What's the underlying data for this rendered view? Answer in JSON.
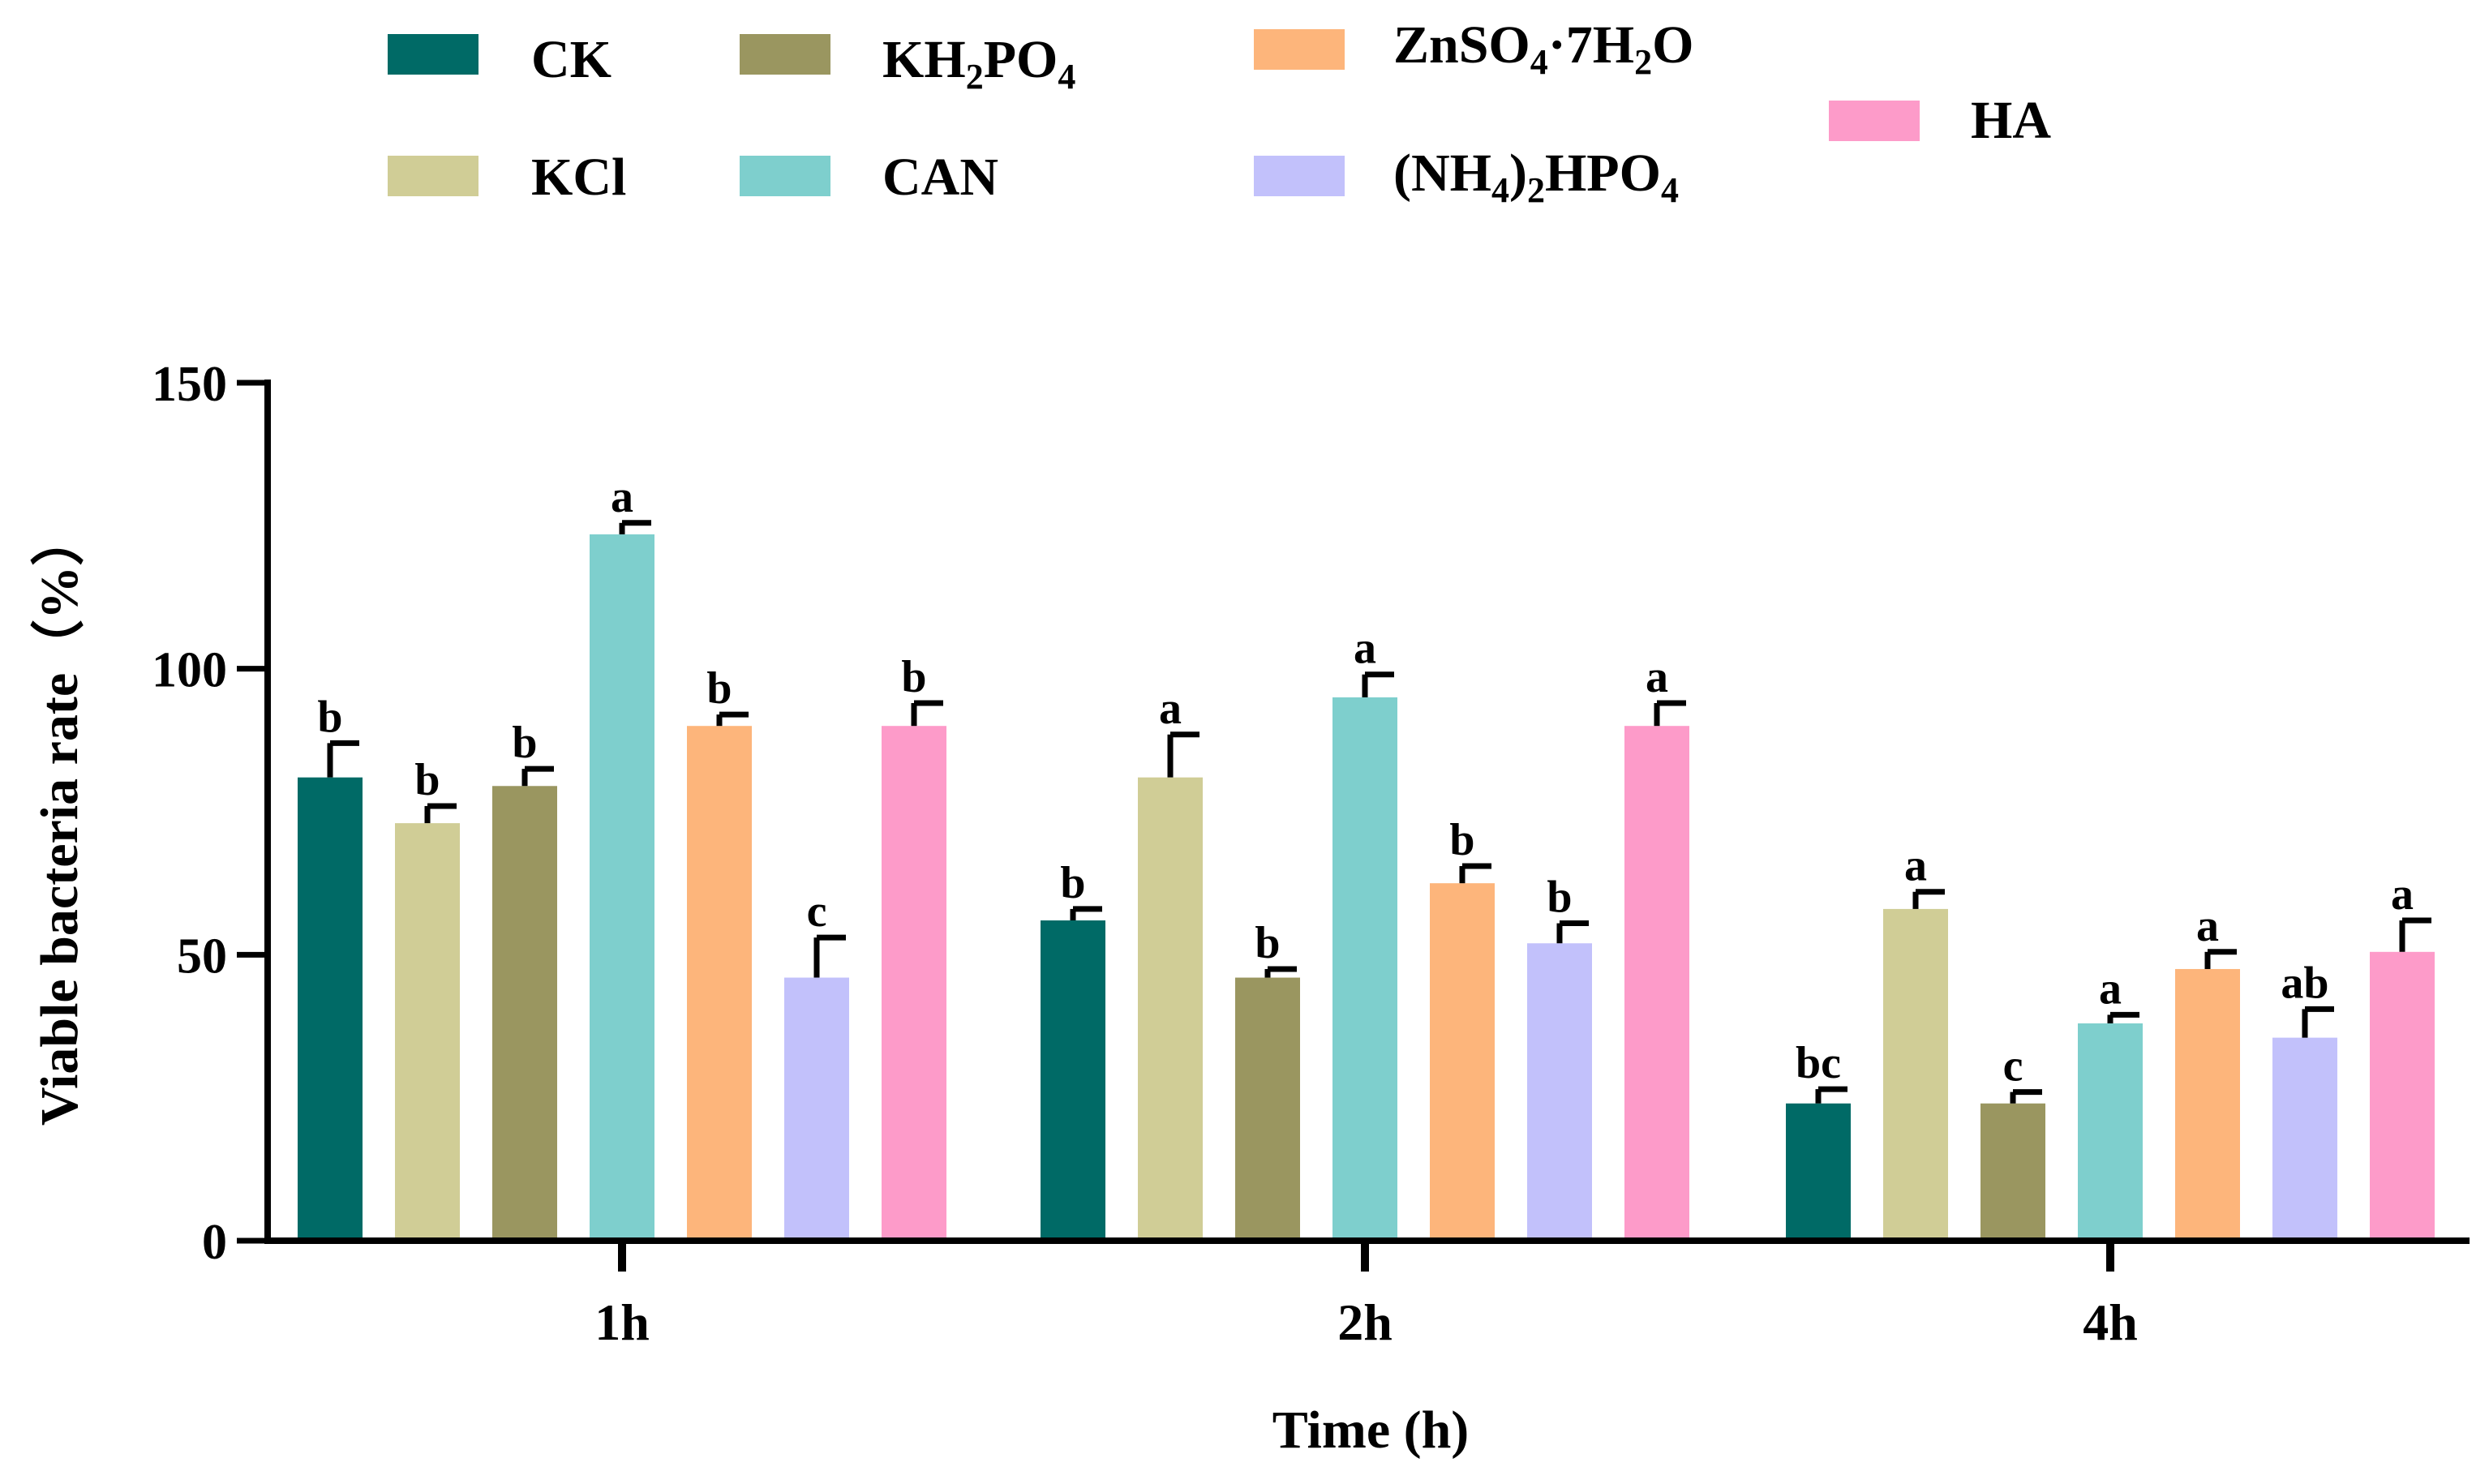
{
  "chart_data": {
    "type": "bar",
    "xlabel": "Time (h)",
    "ylabel": "Viable bacteria rate（%）",
    "ylim": [
      0,
      150
    ],
    "yticks": [
      0,
      50,
      100,
      150
    ],
    "categories": [
      "1h",
      "2h",
      "4h"
    ],
    "legend_position": "top",
    "grid": false,
    "series": [
      {
        "name": "CK",
        "color": "#006a66",
        "values": [
          81,
          56,
          24
        ],
        "errors": [
          6,
          2,
          2.5
        ],
        "letters": [
          "b",
          "b",
          "bc"
        ]
      },
      {
        "name": "KCl",
        "color": "#d0cd96",
        "values": [
          73,
          81,
          58
        ],
        "errors": [
          3,
          7.5,
          3
        ],
        "letters": [
          "b",
          "a",
          "a"
        ]
      },
      {
        "name": "KH₂PO₄",
        "color": "#9a9660",
        "values": [
          79.5,
          46,
          24
        ],
        "errors": [
          3,
          1.5,
          2
        ],
        "letters": [
          "b",
          "b",
          "c"
        ]
      },
      {
        "name": "CAN",
        "color": "#7ecfcd",
        "values": [
          123.5,
          95,
          38
        ],
        "errors": [
          2,
          4,
          1.5
        ],
        "letters": [
          "a",
          "a",
          "a"
        ]
      },
      {
        "name": "ZnSO₄·7H₂O",
        "color": "#fdb57b",
        "values": [
          90,
          62.5,
          47.5
        ],
        "errors": [
          2,
          3,
          3
        ],
        "letters": [
          "b",
          "b",
          "a"
        ]
      },
      {
        "name": "(NH₄)₂HPO₄",
        "color": "#c2c1fb",
        "values": [
          46,
          52,
          35.5
        ],
        "errors": [
          7,
          3.5,
          5
        ],
        "letters": [
          "c",
          "b",
          "ab"
        ]
      },
      {
        "name": "HA",
        "color": "#fd9bc9",
        "values": [
          90,
          90,
          50.5
        ],
        "errors": [
          4,
          4,
          5.5
        ],
        "letters": [
          "b",
          "a",
          "a"
        ]
      }
    ]
  },
  "legend": {
    "items": [
      {
        "parts": [
          {
            "t": "CK"
          }
        ],
        "color": "#006a66"
      },
      {
        "parts": [
          {
            "t": "KH"
          },
          {
            "t": "2",
            "sub": true
          },
          {
            "t": "PO"
          },
          {
            "t": "4",
            "sub": true
          }
        ],
        "color": "#9a9660"
      },
      {
        "parts": [
          {
            "t": "ZnSO"
          },
          {
            "t": "4",
            "sub": true
          },
          {
            "t": "·7H"
          },
          {
            "t": "2",
            "sub": true
          },
          {
            "t": "O"
          }
        ],
        "color": "#fdb57b"
      },
      {
        "parts": [
          {
            "t": "HA"
          }
        ],
        "color": "#fd9bc9"
      },
      {
        "parts": [
          {
            "t": "KCl"
          }
        ],
        "color": "#d0cd96"
      },
      {
        "parts": [
          {
            "t": "CAN"
          }
        ],
        "color": "#7ecfcd"
      },
      {
        "parts": [
          {
            "t": "(NH"
          },
          {
            "t": "4",
            "sub": true
          },
          {
            "t": ")"
          },
          {
            "t": "2",
            "sub": true
          },
          {
            "t": "HPO"
          },
          {
            "t": "4",
            "sub": true
          }
        ],
        "color": "#c2c1fb"
      }
    ]
  }
}
